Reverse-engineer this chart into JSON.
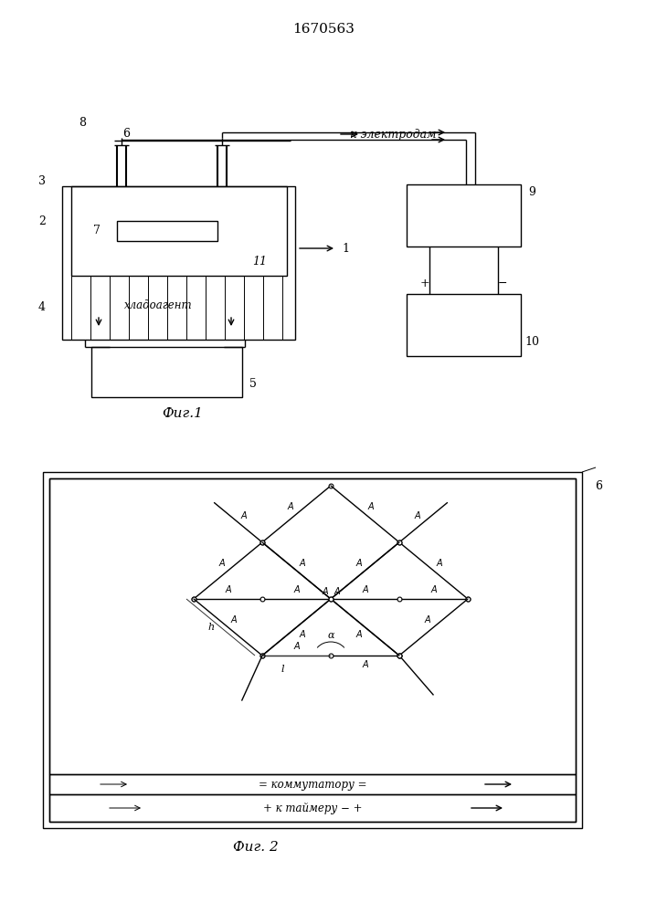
{
  "title": "1670563",
  "fig1_caption": "Фиг.1",
  "fig2_caption": "Фиг. 2",
  "bg_color": "#ffffff",
  "lw": 1.0,
  "lw_thin": 0.7
}
